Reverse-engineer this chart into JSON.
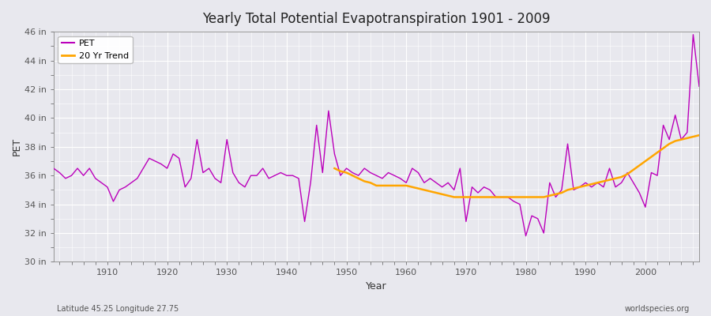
{
  "title": "Yearly Total Potential Evapotranspiration 1901 - 2009",
  "xlabel": "Year",
  "ylabel": "PET",
  "subtitle_left": "Latitude 45.25 Longitude 27.75",
  "subtitle_right": "worldspecies.org",
  "ylim": [
    30,
    46
  ],
  "xlim": [
    1901,
    2009
  ],
  "yticks": [
    30,
    32,
    34,
    36,
    38,
    40,
    42,
    44,
    46
  ],
  "ytick_labels": [
    "30 in",
    "32 in",
    "34 in",
    "36 in",
    "38 in",
    "40 in",
    "42 in",
    "44 in",
    "46 in"
  ],
  "xticks": [
    1910,
    1920,
    1930,
    1940,
    1950,
    1960,
    1970,
    1980,
    1990,
    2000
  ],
  "pet_color": "#bb00bb",
  "trend_color": "#FFA500",
  "bg_color": "#e8e8ee",
  "grid_color": "#ffffff",
  "legend_pet": "PET",
  "legend_trend": "20 Yr Trend",
  "years": [
    1901,
    1902,
    1903,
    1904,
    1905,
    1906,
    1907,
    1908,
    1909,
    1910,
    1911,
    1912,
    1913,
    1914,
    1915,
    1916,
    1917,
    1918,
    1919,
    1920,
    1921,
    1922,
    1923,
    1924,
    1925,
    1926,
    1927,
    1928,
    1929,
    1930,
    1931,
    1932,
    1933,
    1934,
    1935,
    1936,
    1937,
    1938,
    1939,
    1940,
    1941,
    1942,
    1943,
    1944,
    1945,
    1946,
    1947,
    1948,
    1949,
    1950,
    1951,
    1952,
    1953,
    1954,
    1955,
    1956,
    1957,
    1958,
    1959,
    1960,
    1961,
    1962,
    1963,
    1964,
    1965,
    1966,
    1967,
    1968,
    1969,
    1970,
    1971,
    1972,
    1973,
    1974,
    1975,
    1976,
    1977,
    1978,
    1979,
    1980,
    1981,
    1982,
    1983,
    1984,
    1985,
    1986,
    1987,
    1988,
    1989,
    1990,
    1991,
    1992,
    1993,
    1994,
    1995,
    1996,
    1997,
    1998,
    1999,
    2000,
    2001,
    2002,
    2003,
    2004,
    2005,
    2006,
    2007,
    2008,
    2009
  ],
  "pet_values": [
    36.5,
    36.2,
    35.8,
    36.0,
    36.5,
    36.0,
    36.5,
    35.8,
    35.5,
    35.2,
    34.2,
    35.0,
    35.2,
    35.5,
    35.8,
    36.5,
    37.2,
    37.0,
    36.8,
    36.5,
    37.5,
    37.2,
    35.2,
    35.8,
    38.5,
    36.2,
    36.5,
    35.8,
    35.5,
    38.5,
    36.2,
    35.5,
    35.2,
    36.0,
    36.0,
    36.5,
    35.8,
    36.0,
    36.2,
    36.0,
    36.0,
    35.8,
    32.8,
    35.5,
    39.5,
    36.2,
    40.5,
    37.5,
    36.0,
    36.5,
    36.2,
    36.0,
    36.5,
    36.2,
    36.0,
    35.8,
    36.2,
    36.0,
    35.8,
    35.5,
    36.5,
    36.2,
    35.5,
    35.8,
    35.5,
    35.2,
    35.5,
    35.0,
    36.5,
    32.8,
    35.2,
    34.8,
    35.2,
    35.0,
    34.5,
    34.5,
    34.5,
    34.2,
    34.0,
    31.8,
    33.2,
    33.0,
    32.0,
    35.5,
    34.5,
    35.0,
    38.2,
    35.0,
    35.2,
    35.5,
    35.2,
    35.5,
    35.2,
    36.5,
    35.2,
    35.5,
    36.2,
    35.5,
    34.8,
    33.8,
    36.2,
    36.0,
    39.5,
    38.5,
    40.2,
    38.5,
    39.0,
    45.8,
    42.2
  ],
  "trend_years": [
    1948,
    1949,
    1950,
    1951,
    1952,
    1953,
    1954,
    1955,
    1956,
    1957,
    1958,
    1959,
    1960,
    1961,
    1962,
    1963,
    1964,
    1965,
    1966,
    1967,
    1968,
    1969,
    1970,
    1971,
    1972,
    1973,
    1974,
    1975,
    1976,
    1977,
    1978,
    1979,
    1980,
    1981,
    1982,
    1983,
    1984,
    1985,
    1986,
    1987,
    1988,
    1989,
    1990,
    1991,
    1992,
    1993,
    1994,
    1995,
    1996,
    1997,
    1998,
    1999,
    2000,
    2001,
    2002,
    2003,
    2004,
    2005,
    2006,
    2007,
    2008,
    2009
  ],
  "trend_values": [
    36.5,
    36.3,
    36.2,
    36.0,
    35.8,
    35.6,
    35.5,
    35.3,
    35.3,
    35.3,
    35.3,
    35.3,
    35.3,
    35.2,
    35.1,
    35.0,
    34.9,
    34.8,
    34.7,
    34.6,
    34.5,
    34.5,
    34.5,
    34.5,
    34.5,
    34.5,
    34.5,
    34.5,
    34.5,
    34.5,
    34.5,
    34.5,
    34.5,
    34.5,
    34.5,
    34.5,
    34.6,
    34.7,
    34.8,
    35.0,
    35.1,
    35.2,
    35.3,
    35.4,
    35.5,
    35.6,
    35.7,
    35.8,
    35.9,
    36.1,
    36.4,
    36.7,
    37.0,
    37.3,
    37.6,
    37.9,
    38.2,
    38.4,
    38.5,
    38.6,
    38.7,
    38.8
  ]
}
